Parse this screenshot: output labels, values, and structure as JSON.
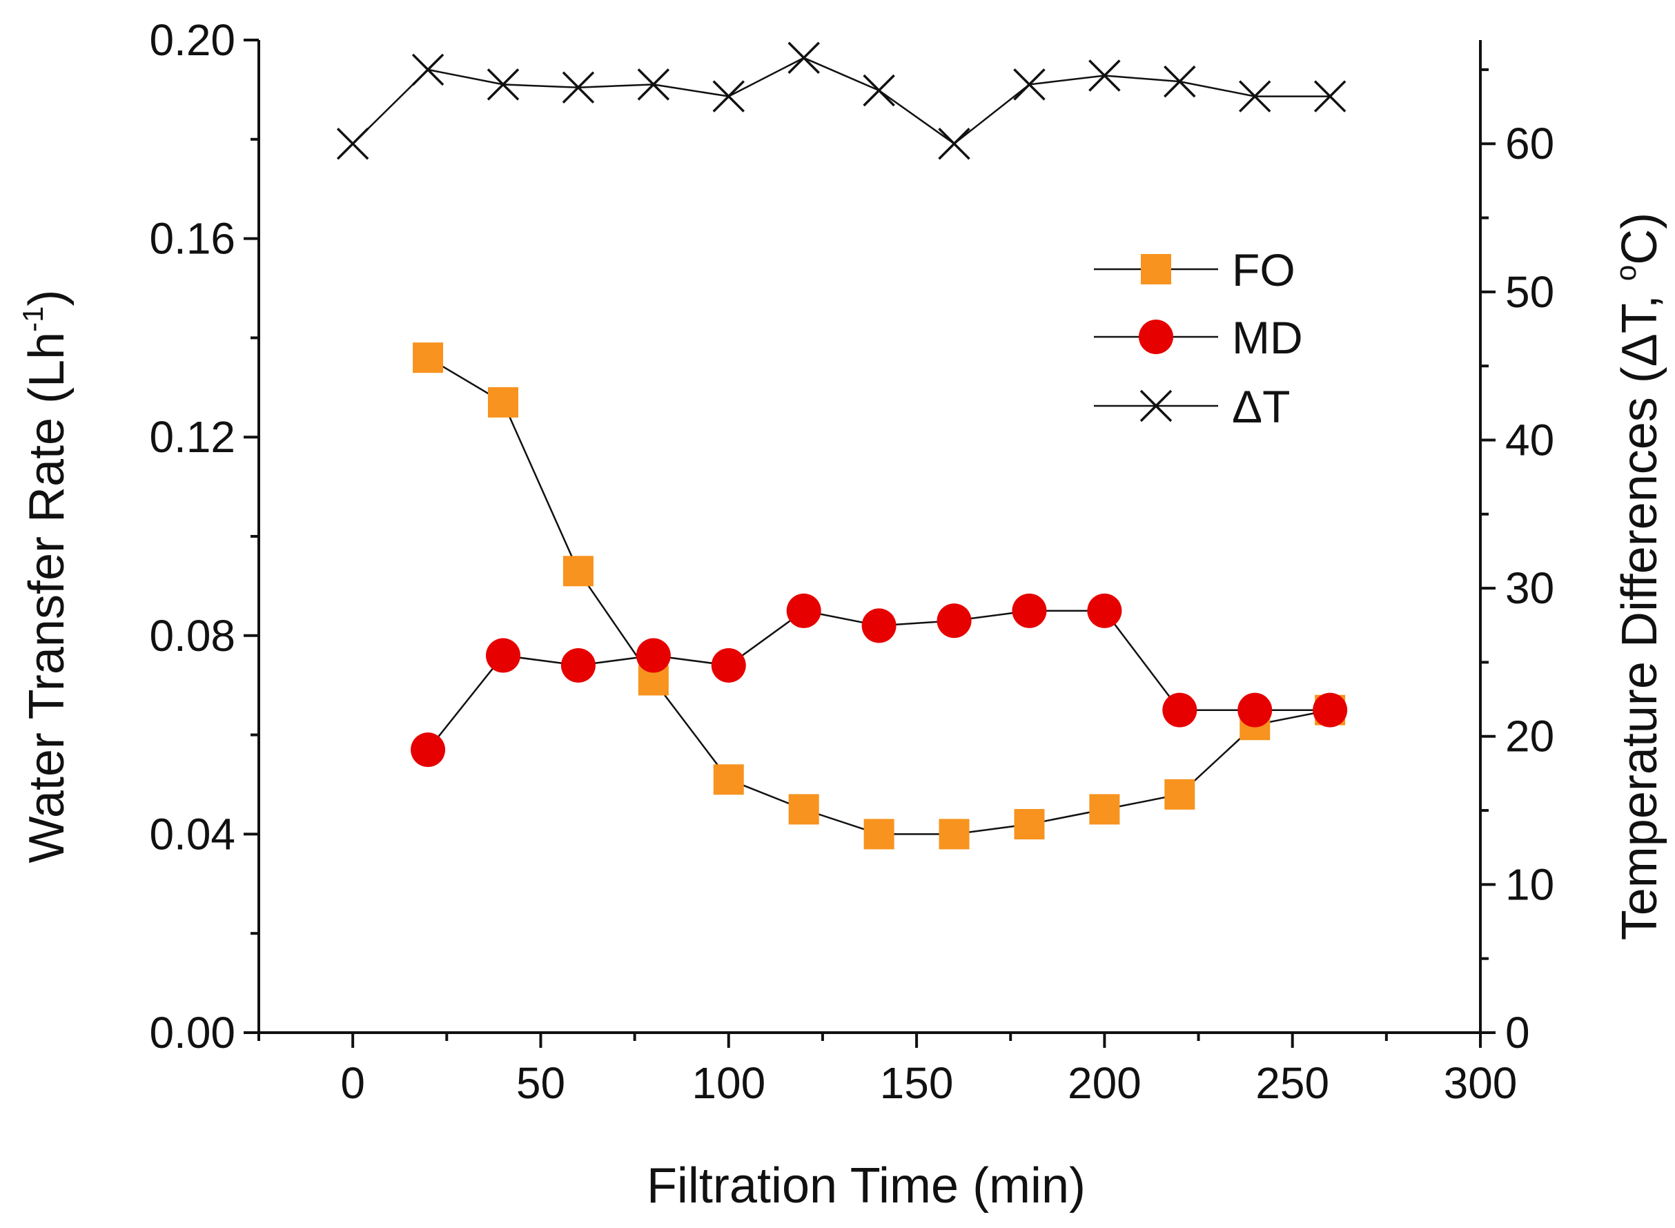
{
  "chart_data": {
    "type": "line",
    "title": "",
    "xlabel": "Filtration Time (min)",
    "ylabel_left": "Water Transfer Rate (Lh",
    "ylabel_left_sup": "-1",
    "ylabel_left_close": ")",
    "ylabel_right": "Temperature Differences (ΔT, ",
    "ylabel_right_sup": "o",
    "ylabel_right_close": "C)",
    "xlim": [
      -25,
      300
    ],
    "ylim_left": [
      0,
      0.2
    ],
    "ylim_right": [
      0,
      67
    ],
    "x_ticks": [
      "0",
      "50",
      "100",
      "150",
      "200",
      "250",
      "300"
    ],
    "y_left_ticks": [
      "0.00",
      "0.04",
      "0.08",
      "0.12",
      "0.16",
      "0.20"
    ],
    "y_right_ticks": [
      "0",
      "10",
      "20",
      "30",
      "40",
      "50",
      "60"
    ],
    "legend_position": "upper-right",
    "series": [
      {
        "name": "FO",
        "axis": "left",
        "marker": "square",
        "color": "#f7931e",
        "x": [
          20,
          40,
          60,
          80,
          100,
          120,
          140,
          160,
          180,
          200,
          220,
          240,
          260
        ],
        "values": [
          0.136,
          0.127,
          0.093,
          0.071,
          0.051,
          0.045,
          0.04,
          0.04,
          0.042,
          0.045,
          0.048,
          0.062,
          0.065
        ]
      },
      {
        "name": "MD",
        "axis": "left",
        "marker": "circle",
        "color": "#e60000",
        "x": [
          20,
          40,
          60,
          80,
          100,
          120,
          140,
          160,
          180,
          200,
          220,
          240,
          260
        ],
        "values": [
          0.057,
          0.076,
          0.074,
          0.076,
          0.074,
          0.085,
          0.082,
          0.083,
          0.085,
          0.085,
          0.065,
          0.065,
          0.065
        ]
      },
      {
        "name": "ΔT",
        "axis": "right",
        "marker": "x",
        "color": "#111111",
        "x": [
          0,
          20,
          40,
          60,
          80,
          100,
          120,
          140,
          160,
          180,
          200,
          220,
          240,
          260
        ],
        "values": [
          60,
          65,
          64,
          63.8,
          64,
          63.2,
          65.8,
          63.6,
          60,
          64,
          64.6,
          64.2,
          63.2,
          63.2
        ]
      }
    ]
  }
}
